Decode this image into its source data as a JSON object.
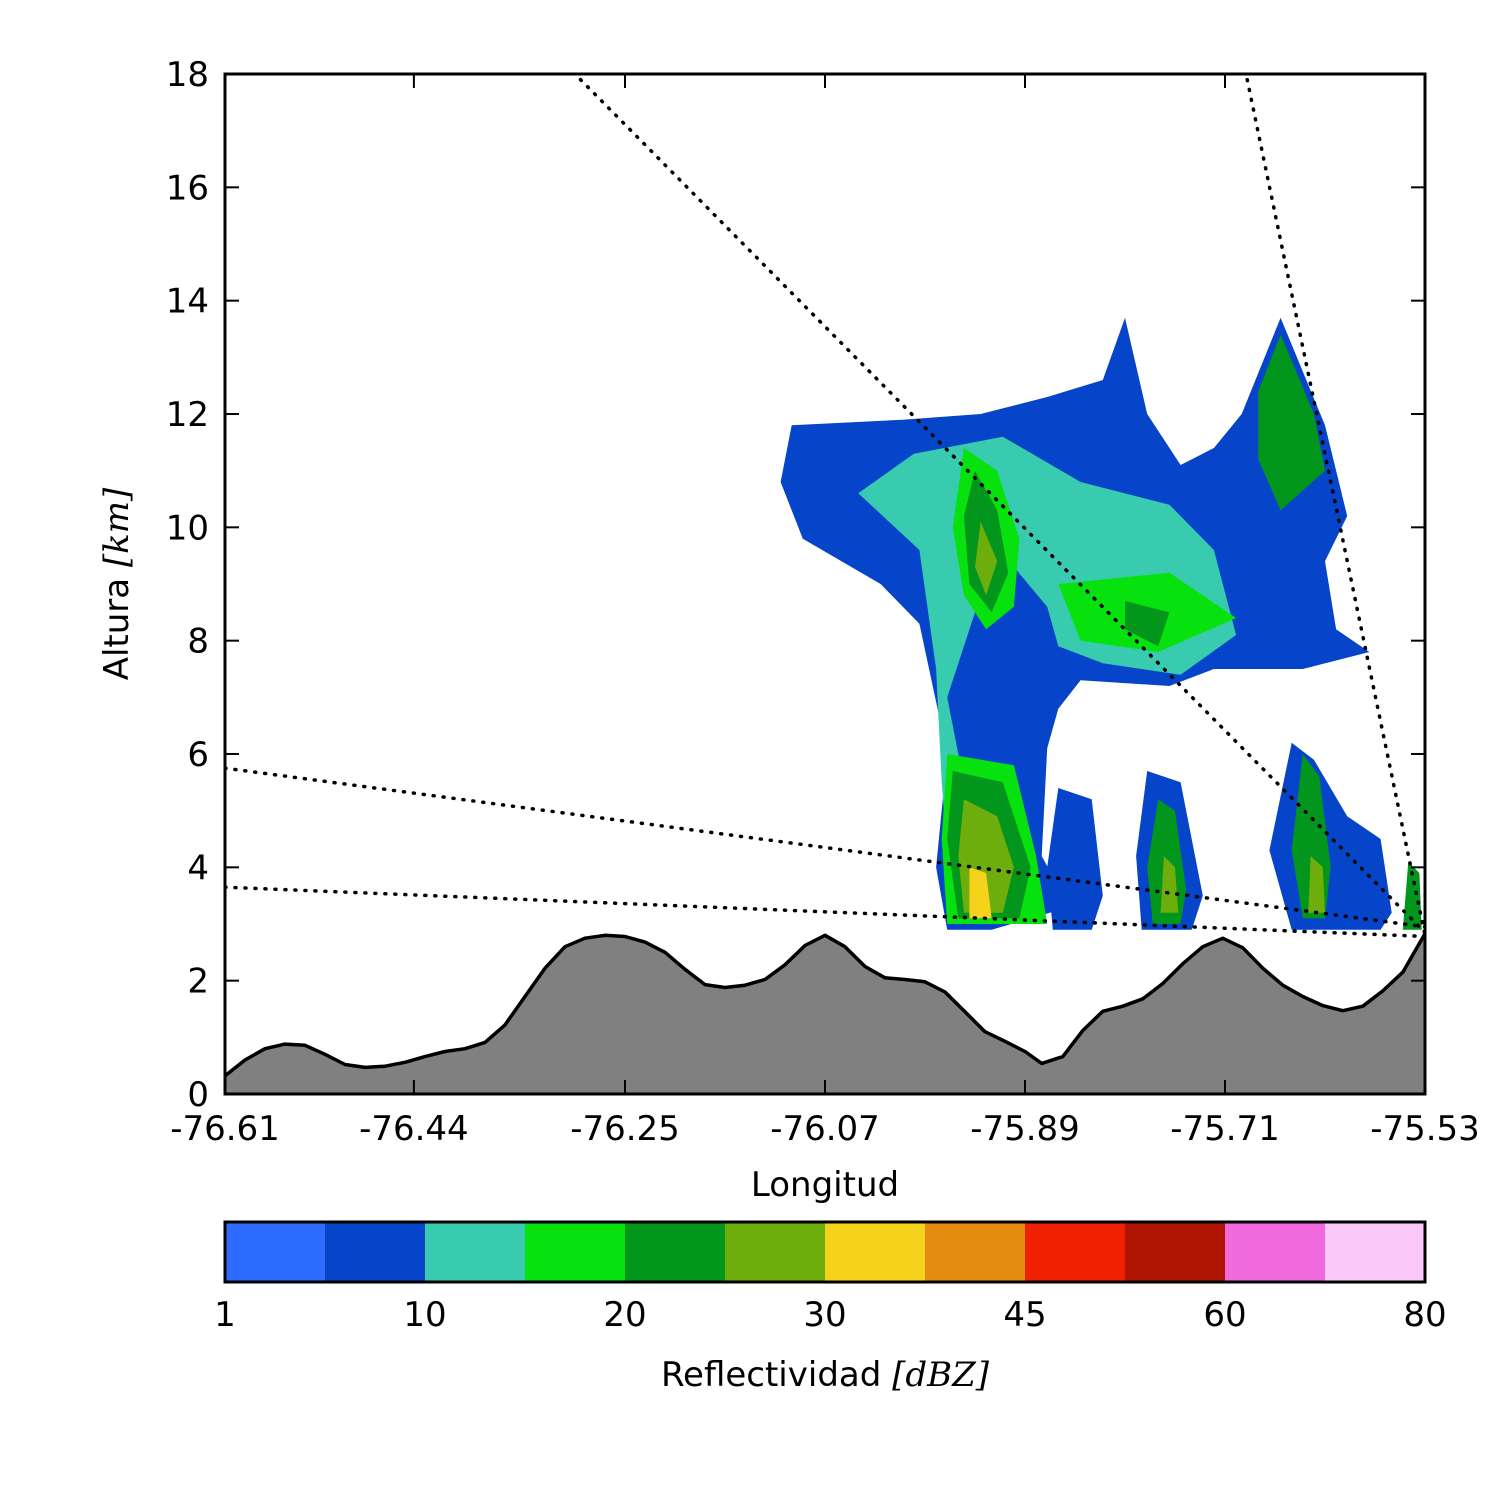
{
  "chart_data": {
    "type": "heatmap",
    "xlabel": "Longitud",
    "ylabel_text": "Altura",
    "ylabel_unit": "[km]",
    "xlim": [
      -76.61,
      -75.53
    ],
    "ylim": [
      0,
      18
    ],
    "x_ticks": [
      "-76.61",
      "-76.44",
      "-76.25",
      "-76.07",
      "-75.89",
      "-75.71",
      "-75.53"
    ],
    "y_ticks": [
      "0",
      "2",
      "4",
      "6",
      "8",
      "10",
      "12",
      "14",
      "16",
      "18"
    ],
    "grid": false,
    "terrain": {
      "fill_color": "#808080",
      "x": [
        -76.61,
        -76.592,
        -76.574,
        -76.556,
        -76.538,
        -76.52,
        -76.502,
        -76.484,
        -76.466,
        -76.448,
        -76.43,
        -76.412,
        -76.394,
        -76.376,
        -76.358,
        -76.34,
        -76.322,
        -76.304,
        -76.286,
        -76.268,
        -76.25,
        -76.232,
        -76.214,
        -76.196,
        -76.178,
        -76.16,
        -76.142,
        -76.124,
        -76.106,
        -76.088,
        -76.07,
        -76.052,
        -76.034,
        -76.016,
        -75.998,
        -75.98,
        -75.962,
        -75.944,
        -75.926,
        -75.908,
        -75.89,
        -75.875,
        -75.856,
        -75.838,
        -75.82,
        -75.802,
        -75.784,
        -75.766,
        -75.748,
        -75.73,
        -75.712,
        -75.694,
        -75.676,
        -75.658,
        -75.64,
        -75.622,
        -75.604,
        -75.586,
        -75.568,
        -75.55,
        -75.53
      ],
      "y": [
        0.32,
        0.6,
        0.8,
        0.88,
        0.86,
        0.7,
        0.52,
        0.47,
        0.49,
        0.56,
        0.66,
        0.75,
        0.8,
        0.91,
        1.22,
        1.72,
        2.22,
        2.6,
        2.75,
        2.8,
        2.78,
        2.68,
        2.5,
        2.2,
        1.93,
        1.88,
        1.92,
        2.02,
        2.28,
        2.62,
        2.8,
        2.6,
        2.25,
        2.05,
        2.02,
        1.98,
        1.8,
        1.45,
        1.1,
        0.93,
        0.75,
        0.54,
        0.66,
        1.12,
        1.46,
        1.55,
        1.68,
        1.95,
        2.3,
        2.6,
        2.75,
        2.58,
        2.22,
        1.92,
        1.72,
        1.56,
        1.47,
        1.55,
        1.82,
        2.15,
        2.83
      ]
    },
    "beam_lines": [
      {
        "style": "dotted",
        "x": [
          -76.29,
          -75.53
        ],
        "y": [
          17.9,
          2.85
        ]
      },
      {
        "style": "dotted",
        "x": [
          -75.69,
          -75.53
        ],
        "y": [
          17.9,
          2.8
        ]
      },
      {
        "style": "dotted",
        "x": [
          -76.61,
          -75.53
        ],
        "y": [
          5.75,
          2.95
        ]
      },
      {
        "style": "dotted",
        "x": [
          -76.61,
          -75.53
        ],
        "y": [
          3.65,
          2.78
        ]
      }
    ],
    "reflectivity_regions": [
      {
        "name": "main-cloud-dbz-5",
        "dbz": 5,
        "poly": [
          [
            -76.0,
            11.9
          ],
          [
            -75.93,
            12.0
          ],
          [
            -75.87,
            12.3
          ],
          [
            -75.82,
            12.6
          ],
          [
            -75.8,
            13.7
          ],
          [
            -75.78,
            12.0
          ],
          [
            -75.75,
            11.1
          ],
          [
            -75.72,
            11.4
          ],
          [
            -75.695,
            12.0
          ],
          [
            -75.66,
            13.7
          ],
          [
            -75.62,
            11.8
          ],
          [
            -75.6,
            10.2
          ],
          [
            -75.62,
            9.4
          ],
          [
            -75.61,
            8.2
          ],
          [
            -75.58,
            7.8
          ],
          [
            -75.64,
            7.5
          ],
          [
            -75.72,
            7.5
          ],
          [
            -75.76,
            7.2
          ],
          [
            -75.84,
            7.3
          ],
          [
            -75.86,
            6.8
          ],
          [
            -75.87,
            6.1
          ],
          [
            -75.875,
            4.2
          ],
          [
            -75.85,
            3.3
          ],
          [
            -75.92,
            2.9
          ],
          [
            -75.96,
            2.9
          ],
          [
            -75.97,
            4.0
          ],
          [
            -75.96,
            6.0
          ],
          [
            -75.985,
            8.3
          ],
          [
            -76.02,
            9.0
          ],
          [
            -76.09,
            9.8
          ],
          [
            -76.11,
            10.8
          ],
          [
            -76.1,
            11.8
          ]
        ]
      },
      {
        "name": "main-cloud-dbz-10",
        "dbz": 10,
        "poly": [
          [
            -75.99,
            11.3
          ],
          [
            -75.91,
            11.6
          ],
          [
            -75.84,
            10.8
          ],
          [
            -75.76,
            10.4
          ],
          [
            -75.72,
            9.6
          ],
          [
            -75.7,
            8.1
          ],
          [
            -75.75,
            7.4
          ],
          [
            -75.82,
            7.6
          ],
          [
            -75.86,
            7.9
          ],
          [
            -75.87,
            8.6
          ],
          [
            -75.9,
            9.3
          ],
          [
            -75.93,
            8.8
          ],
          [
            -75.96,
            7.0
          ],
          [
            -75.95,
            6.0
          ],
          [
            -75.93,
            4.4
          ],
          [
            -75.9,
            3.2
          ],
          [
            -75.955,
            3.0
          ],
          [
            -75.965,
            5.5
          ],
          [
            -75.97,
            7.5
          ],
          [
            -75.985,
            9.6
          ],
          [
            -76.04,
            10.6
          ]
        ]
      },
      {
        "name": "core-upper-dbz-15",
        "dbz": 15,
        "poly": [
          [
            -75.945,
            11.4
          ],
          [
            -75.915,
            11.0
          ],
          [
            -75.895,
            9.8
          ],
          [
            -75.9,
            8.6
          ],
          [
            -75.925,
            8.2
          ],
          [
            -75.945,
            8.8
          ],
          [
            -75.955,
            10.0
          ]
        ]
      },
      {
        "name": "core-upper-dbz-20",
        "dbz": 20,
        "poly": [
          [
            -75.935,
            11.0
          ],
          [
            -75.915,
            10.3
          ],
          [
            -75.905,
            9.2
          ],
          [
            -75.92,
            8.5
          ],
          [
            -75.94,
            9.0
          ],
          [
            -75.945,
            10.2
          ]
        ]
      },
      {
        "name": "core-upper-dbz-27",
        "dbz": 27,
        "poly": [
          [
            -75.93,
            10.1
          ],
          [
            -75.915,
            9.4
          ],
          [
            -75.925,
            8.8
          ],
          [
            -75.935,
            9.3
          ]
        ]
      },
      {
        "name": "mid-band-dbz-15",
        "dbz": 15,
        "poly": [
          [
            -75.86,
            9.0
          ],
          [
            -75.76,
            9.2
          ],
          [
            -75.7,
            8.4
          ],
          [
            -75.77,
            7.8
          ],
          [
            -75.84,
            8.0
          ]
        ]
      },
      {
        "name": "mid-band-dbz-20",
        "dbz": 20,
        "poly": [
          [
            -75.8,
            8.7
          ],
          [
            -75.76,
            8.5
          ],
          [
            -75.77,
            7.9
          ],
          [
            -75.8,
            8.2
          ]
        ]
      },
      {
        "name": "right-top-dbz-20",
        "dbz": 20,
        "poly": [
          [
            -75.66,
            13.4
          ],
          [
            -75.63,
            12.0
          ],
          [
            -75.62,
            11.0
          ],
          [
            -75.66,
            10.3
          ],
          [
            -75.68,
            11.2
          ],
          [
            -75.68,
            12.4
          ]
        ]
      },
      {
        "name": "lower-core-dbz-15",
        "dbz": 15,
        "poly": [
          [
            -75.96,
            6.0
          ],
          [
            -75.9,
            5.8
          ],
          [
            -75.88,
            4.2
          ],
          [
            -75.87,
            3.0
          ],
          [
            -75.96,
            3.0
          ],
          [
            -75.965,
            4.5
          ]
        ]
      },
      {
        "name": "lower-core-dbz-20",
        "dbz": 20,
        "poly": [
          [
            -75.955,
            5.7
          ],
          [
            -75.91,
            5.5
          ],
          [
            -75.885,
            4.0
          ],
          [
            -75.895,
            3.1
          ],
          [
            -75.95,
            3.1
          ],
          [
            -75.96,
            4.5
          ]
        ]
      },
      {
        "name": "lower-core-dbz-27",
        "dbz": 27,
        "poly": [
          [
            -75.945,
            5.2
          ],
          [
            -75.915,
            4.9
          ],
          [
            -75.9,
            4.0
          ],
          [
            -75.91,
            3.2
          ],
          [
            -75.945,
            3.2
          ],
          [
            -75.95,
            4.2
          ]
        ]
      },
      {
        "name": "lower-core-dbz-32",
        "dbz": 32,
        "poly": [
          [
            -75.94,
            4.0
          ],
          [
            -75.925,
            3.9
          ],
          [
            -75.92,
            3.1
          ],
          [
            -75.94,
            3.1
          ]
        ]
      },
      {
        "name": "cell-a-dbz-5",
        "dbz": 5,
        "poly": [
          [
            -75.86,
            5.4
          ],
          [
            -75.83,
            5.2
          ],
          [
            -75.82,
            3.5
          ],
          [
            -75.83,
            2.9
          ],
          [
            -75.865,
            2.9
          ],
          [
            -75.87,
            4.0
          ]
        ]
      },
      {
        "name": "cell-b-dbz-5",
        "dbz": 5,
        "poly": [
          [
            -75.78,
            5.7
          ],
          [
            -75.75,
            5.5
          ],
          [
            -75.73,
            3.5
          ],
          [
            -75.74,
            2.9
          ],
          [
            -75.785,
            2.9
          ],
          [
            -75.79,
            4.2
          ]
        ]
      },
      {
        "name": "cell-b-dbz-20",
        "dbz": 20,
        "poly": [
          [
            -75.77,
            5.2
          ],
          [
            -75.755,
            5.0
          ],
          [
            -75.745,
            3.6
          ],
          [
            -75.75,
            3.0
          ],
          [
            -75.775,
            3.0
          ],
          [
            -75.78,
            4.0
          ]
        ]
      },
      {
        "name": "cell-b-dbz-27",
        "dbz": 27,
        "poly": [
          [
            -75.765,
            4.2
          ],
          [
            -75.755,
            4.0
          ],
          [
            -75.752,
            3.2
          ],
          [
            -75.768,
            3.2
          ]
        ]
      },
      {
        "name": "cell-c-dbz-5",
        "dbz": 5,
        "poly": [
          [
            -75.65,
            6.2
          ],
          [
            -75.63,
            5.9
          ],
          [
            -75.6,
            4.9
          ],
          [
            -75.57,
            4.5
          ],
          [
            -75.56,
            3.2
          ],
          [
            -75.57,
            2.9
          ],
          [
            -75.65,
            2.9
          ],
          [
            -75.67,
            4.3
          ]
        ]
      },
      {
        "name": "cell-c-dbz-20",
        "dbz": 20,
        "poly": [
          [
            -75.64,
            6.0
          ],
          [
            -75.625,
            5.6
          ],
          [
            -75.615,
            4.0
          ],
          [
            -75.62,
            3.1
          ],
          [
            -75.64,
            3.1
          ],
          [
            -75.65,
            4.3
          ]
        ]
      },
      {
        "name": "cell-c-dbz-27",
        "dbz": 27,
        "poly": [
          [
            -75.633,
            4.2
          ],
          [
            -75.622,
            4.0
          ],
          [
            -75.62,
            3.2
          ],
          [
            -75.635,
            3.2
          ]
        ]
      },
      {
        "name": "cell-d-dbz-20",
        "dbz": 20,
        "poly": [
          [
            -75.545,
            4.1
          ],
          [
            -75.535,
            3.9
          ],
          [
            -75.533,
            2.9
          ],
          [
            -75.55,
            2.9
          ]
        ]
      }
    ],
    "colorbar": {
      "label_text": "Reflectividad",
      "label_unit": "[dBZ]",
      "tick_labels": [
        "1",
        "10",
        "20",
        "30",
        "45",
        "60",
        "80"
      ],
      "colors": [
        "#2e6cff",
        "#0645c9",
        "#39cbb0",
        "#07e20f",
        "#03961c",
        "#6dad0c",
        "#f6d21c",
        "#e48b10",
        "#f02102",
        "#b01402",
        "#f06ade",
        "#f9c8f9"
      ]
    }
  }
}
